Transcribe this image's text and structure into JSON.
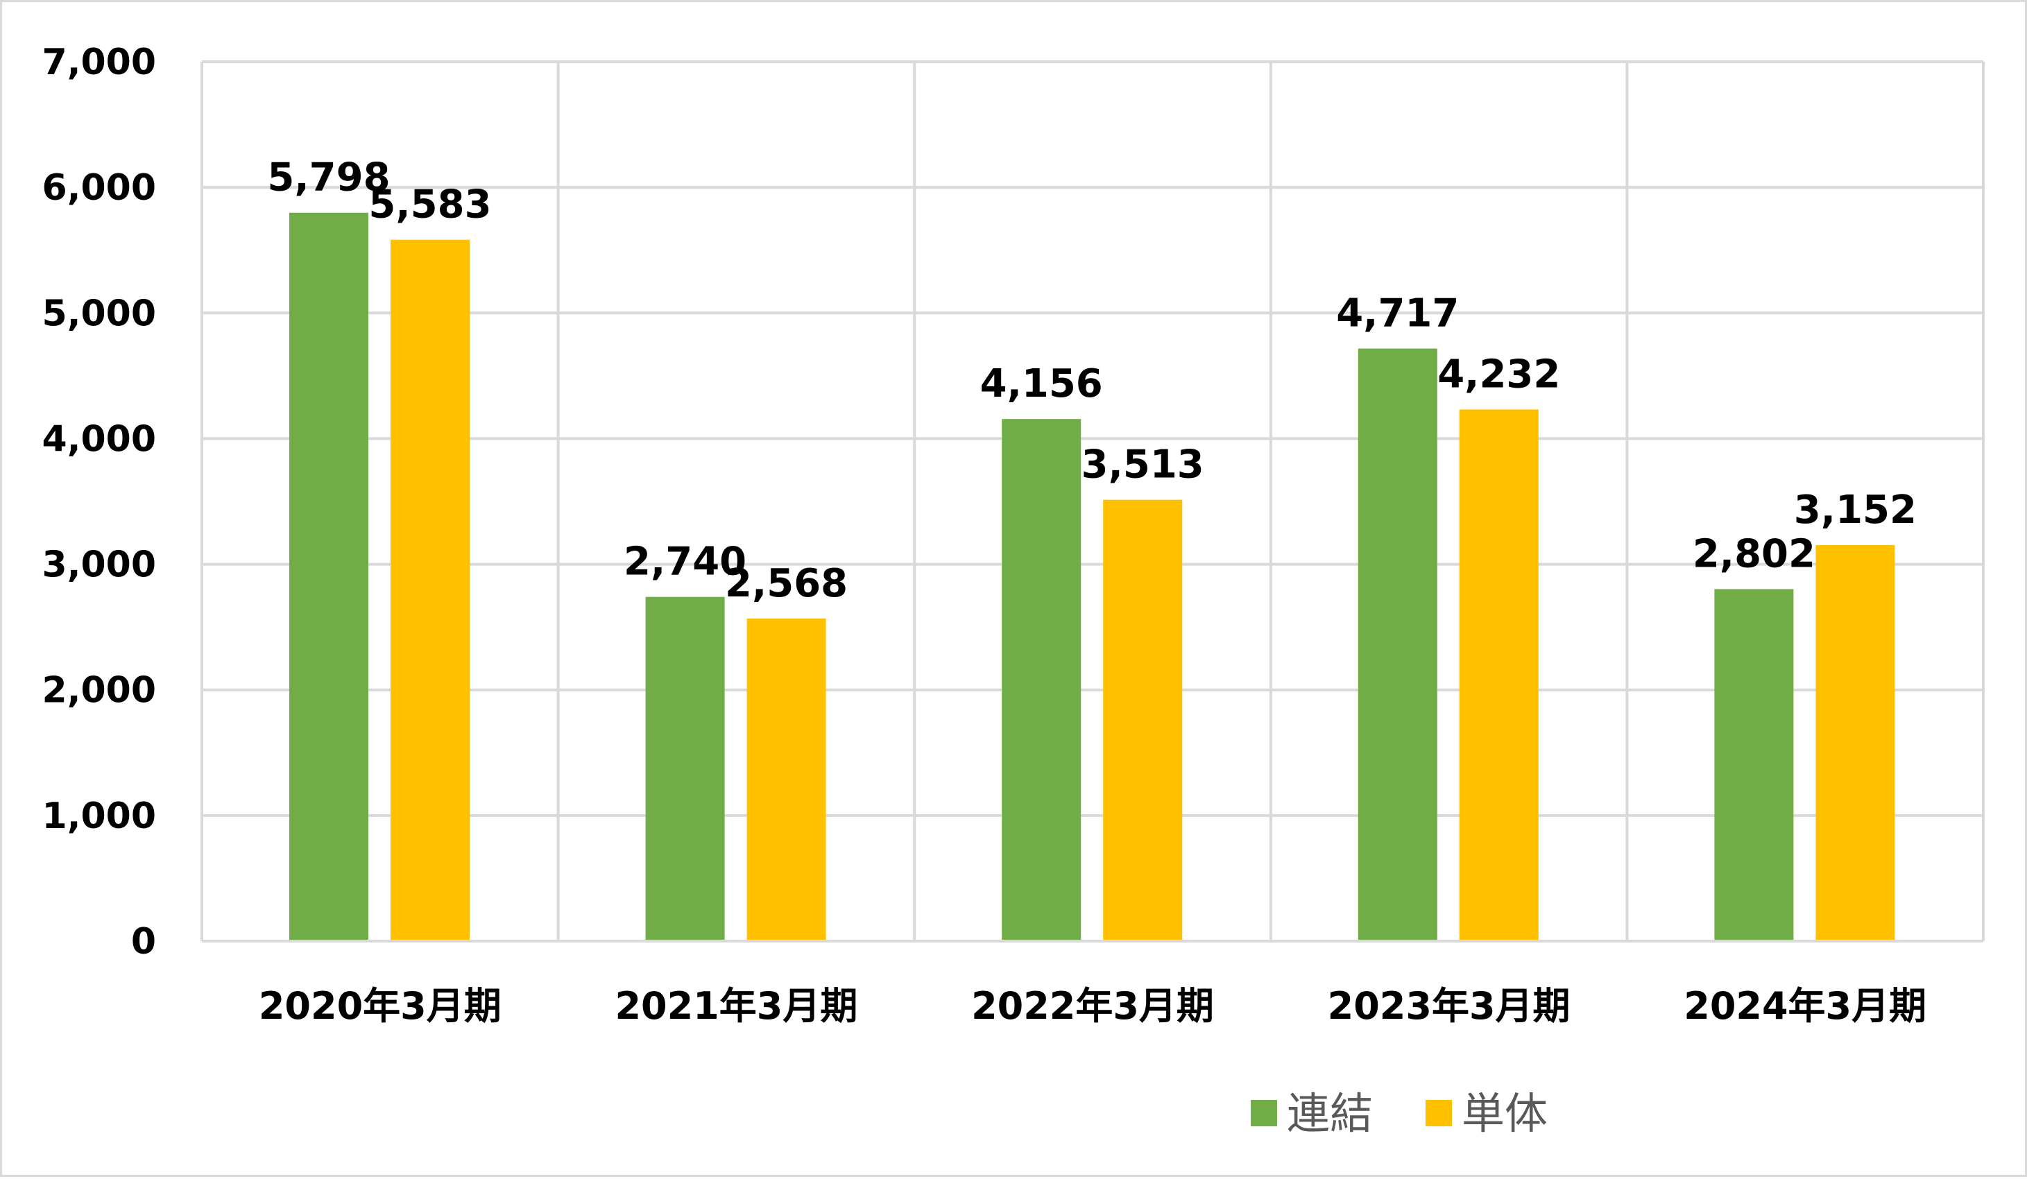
{
  "chart_data": {
    "type": "bar",
    "categories": [
      "2020年3月期",
      "2021年3月期",
      "2022年3月期",
      "2023年3月期",
      "2024年3月期"
    ],
    "series": [
      {
        "name": "連結",
        "color": "#70ad47",
        "values": [
          5798,
          2740,
          4156,
          4717,
          2802
        ]
      },
      {
        "name": "単体",
        "color": "#ffc000",
        "values": [
          5583,
          2568,
          3513,
          4232,
          3152
        ]
      }
    ],
    "data_labels": [
      [
        "5,798",
        "2,740",
        "4,156",
        "4,717",
        "2,802"
      ],
      [
        "5,583",
        "2,568",
        "3,513",
        "4,232",
        "3,152"
      ]
    ],
    "yticks": [
      0,
      1000,
      2000,
      3000,
      4000,
      5000,
      6000,
      7000
    ],
    "ytick_labels": [
      "0",
      "1,000",
      "2,000",
      "3,000",
      "4,000",
      "5,000",
      "6,000",
      "7,000"
    ],
    "ylim": [
      0,
      7000
    ],
    "grid": true,
    "legend_position": "bottom-right",
    "title": "",
    "xlabel": "",
    "ylabel": ""
  }
}
